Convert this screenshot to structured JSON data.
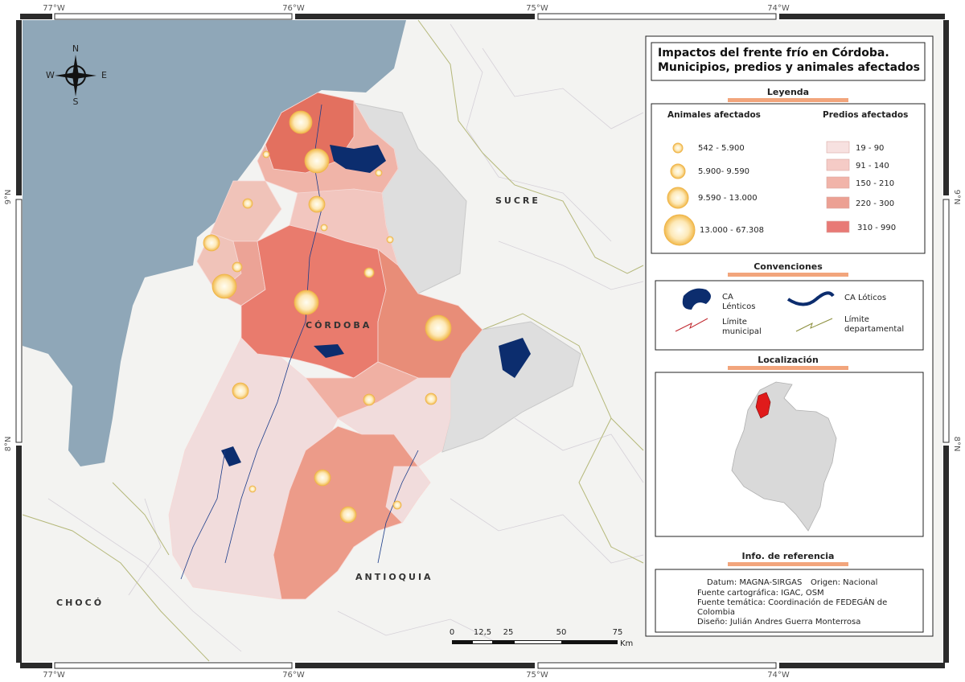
{
  "map": {
    "coordinates": {
      "longitudes": [
        "77°W",
        "76°W",
        "75°W",
        "74°W"
      ],
      "latitudes": [
        "9°N",
        "8°N"
      ]
    },
    "compass": {
      "north": "N",
      "south": "S",
      "east": "E",
      "west": "W"
    },
    "place_labels": {
      "sucre": "SUCRE",
      "cordoba": "CÓRDOBA",
      "antioquia": "ANTIOQUIA",
      "choco": "CHOCÓ"
    },
    "scale": {
      "ticks": [
        "0",
        "12,5",
        "25",
        "50",
        "75"
      ],
      "unit": "Km"
    }
  },
  "panel": {
    "title": [
      "Impactos del frente frío en Córdoba.",
      "Municipios, predios y animales afectados"
    ],
    "legend": {
      "title": "Leyenda",
      "animals": {
        "title": "Animales afectados",
        "classes": [
          "542 - 5.900",
          "5.900- 9.590",
          "9.590 - 13.000",
          "13.000 - 67.308"
        ]
      },
      "predios": {
        "title": "Predios afectados",
        "classes": [
          "19 - 90",
          "91 - 140",
          "150 - 210",
          "220 - 300",
          "310 - 990"
        ]
      }
    },
    "conventions": {
      "title": "Convenciones",
      "lenticos": [
        "CA",
        "Lénticos"
      ],
      "loticos": "CA Lóticos",
      "municipal": [
        "Límite",
        "municipal"
      ],
      "departamental": [
        "Límite",
        "departamental"
      ]
    },
    "location": {
      "title": "Localización"
    },
    "reference": {
      "title": "Info. de referencia",
      "datum": "Datum: MAGNA-SIRGAS",
      "origin": "Origen: Nacional",
      "lines": [
        "Fuente cartográfica: IGAC, OSM",
        "Fuente temática: Coordinación de FEDEGÁN  de",
        "Colombia",
        "Diseño: Julián Andres Guerra Monterrosa"
      ]
    }
  }
}
